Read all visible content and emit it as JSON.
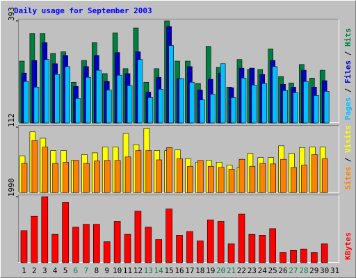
{
  "chart_data": [
    {
      "type": "bar",
      "title": "Daily usage for September 2003",
      "ylim": [
        0,
        393
      ],
      "yticks": [
        393
      ],
      "legend_separator": " / ",
      "series": [
        {
          "name": "Hits",
          "color": "#008040",
          "values": [
            238,
            344,
            344,
            268,
            274,
            157,
            241,
            309,
            190,
            347,
            209,
            366,
            157,
            209,
            393,
            238,
            238,
            152,
            295,
            214,
            138,
            244,
            206,
            206,
            285,
            179,
            154,
            225,
            173,
            203,
            null
          ]
        },
        {
          "name": "Files",
          "color": "#0000C0",
          "values": [
            192,
            241,
            309,
            228,
            260,
            141,
            217,
            260,
            160,
            271,
            190,
            274,
            119,
            176,
            371,
            171,
            217,
            127,
            168,
            192,
            136,
            211,
            211,
            187,
            241,
            149,
            138,
            203,
            138,
            163,
            null
          ]
        },
        {
          "name": "Pages",
          "color": "#00C0FF",
          "values": [
            160,
            138,
            244,
            187,
            217,
            95,
            176,
            203,
            127,
            184,
            144,
            244,
            98,
            130,
            298,
            171,
            157,
            89,
            111,
            228,
            98,
            173,
            146,
            152,
            217,
            125,
            117,
            160,
            106,
            122,
            null
          ]
        }
      ]
    },
    {
      "type": "bar",
      "ylim": [
        0,
        112
      ],
      "yticks": [
        112
      ],
      "legend_separator": " / ",
      "series": [
        {
          "name": "Visits",
          "color": "#FFFF00",
          "values": [
            63,
            104,
            93,
            72,
            72,
            55,
            65,
            68,
            78,
            78,
            101,
            82,
            110,
            72,
            72,
            73,
            58,
            52,
            55,
            52,
            47,
            43,
            67,
            60,
            60,
            80,
            67,
            77,
            78,
            78,
            null
          ]
        },
        {
          "name": "Sites",
          "color": "#FF8000",
          "values": [
            50,
            89,
            78,
            50,
            52,
            55,
            50,
            54,
            55,
            55,
            61,
            72,
            72,
            56,
            77,
            58,
            45,
            55,
            45,
            43,
            40,
            57,
            45,
            50,
            49,
            57,
            43,
            47,
            65,
            58,
            null
          ]
        }
      ]
    },
    {
      "type": "bar",
      "ylim": [
        0,
        1990
      ],
      "yticks": [
        1990
      ],
      "categories": [
        "1",
        "2",
        "3",
        "4",
        "5",
        "6",
        "7",
        "8",
        "9",
        "10",
        "11",
        "12",
        "13",
        "14",
        "15",
        "16",
        "17",
        "18",
        "19",
        "20",
        "21",
        "22",
        "23",
        "24",
        "25",
        "26",
        "27",
        "28",
        "29",
        "30",
        "31"
      ],
      "highlighted": [
        5,
        6,
        12,
        13,
        19,
        20,
        26,
        27
      ],
      "highlight_color": "#008040",
      "series": [
        {
          "name": "KBytes",
          "color": "#FF0000",
          "values": [
            966,
            1400,
            1990,
            856,
            1815,
            1071,
            1159,
            1159,
            634,
            1247,
            856,
            1553,
            1071,
            700,
            1619,
            831,
            940,
            656,
            1290,
            1247,
            569,
            1465,
            856,
            831,
            1028,
            306,
            372,
            415,
            306,
            569,
            null
          ]
        }
      ]
    }
  ]
}
